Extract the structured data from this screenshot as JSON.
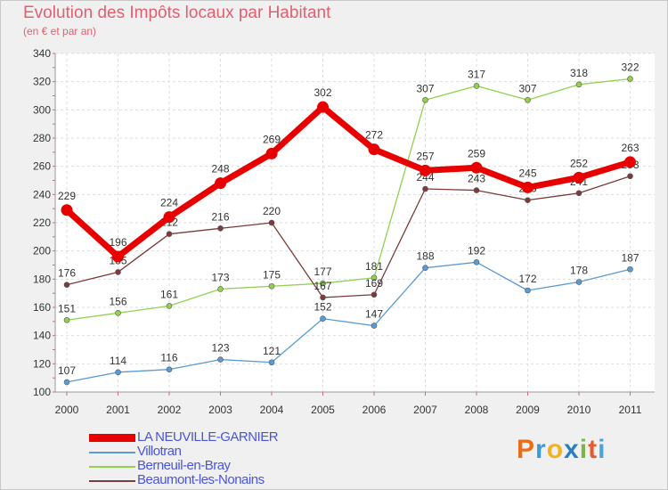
{
  "title": "Evolution des Impôts locaux par Habitant",
  "subtitle": "(en € et par an)",
  "chart_data": {
    "type": "line",
    "title": "Evolution des Impôts locaux par Habitant",
    "subtitle": "(en € et par an)",
    "xlabel": "",
    "ylabel": "",
    "categories": [
      "2000",
      "2001",
      "2002",
      "2003",
      "2004",
      "2005",
      "2006",
      "2007",
      "2008",
      "2009",
      "2010",
      "2011"
    ],
    "ylim": [
      100,
      340
    ],
    "yticks": [
      100,
      120,
      140,
      160,
      180,
      200,
      220,
      240,
      260,
      280,
      300,
      320,
      340
    ],
    "grid": true,
    "legend_position": "bottom-left",
    "series": [
      {
        "name": "LA NEUVILLE-GARNIER",
        "color": "#e80000",
        "values": [
          229,
          196,
          224,
          248,
          269,
          302,
          272,
          257,
          259,
          245,
          252,
          263
        ]
      },
      {
        "name": "Villotran",
        "color": "#5b9bd5",
        "values": [
          107,
          114,
          116,
          123,
          121,
          152,
          147,
          188,
          192,
          172,
          178,
          187
        ]
      },
      {
        "name": "Berneuil-en-Bray",
        "color": "#92d050",
        "values": [
          151,
          156,
          161,
          173,
          175,
          177,
          181,
          307,
          317,
          307,
          318,
          322
        ]
      },
      {
        "name": "Beaumont-les-Nonains",
        "color": "#7b3b3b",
        "values": [
          176,
          185,
          212,
          216,
          220,
          167,
          169,
          244,
          243,
          236,
          241,
          253
        ]
      }
    ]
  },
  "logo": {
    "letters": [
      "P",
      "r",
      "o",
      "x",
      "i",
      "t",
      "i"
    ],
    "colors": [
      "#e86f1a",
      "#3c9ad6",
      "#f0b323",
      "#2a7fc0",
      "#7ab648",
      "#e85a2b",
      "#4aa5dd"
    ]
  }
}
